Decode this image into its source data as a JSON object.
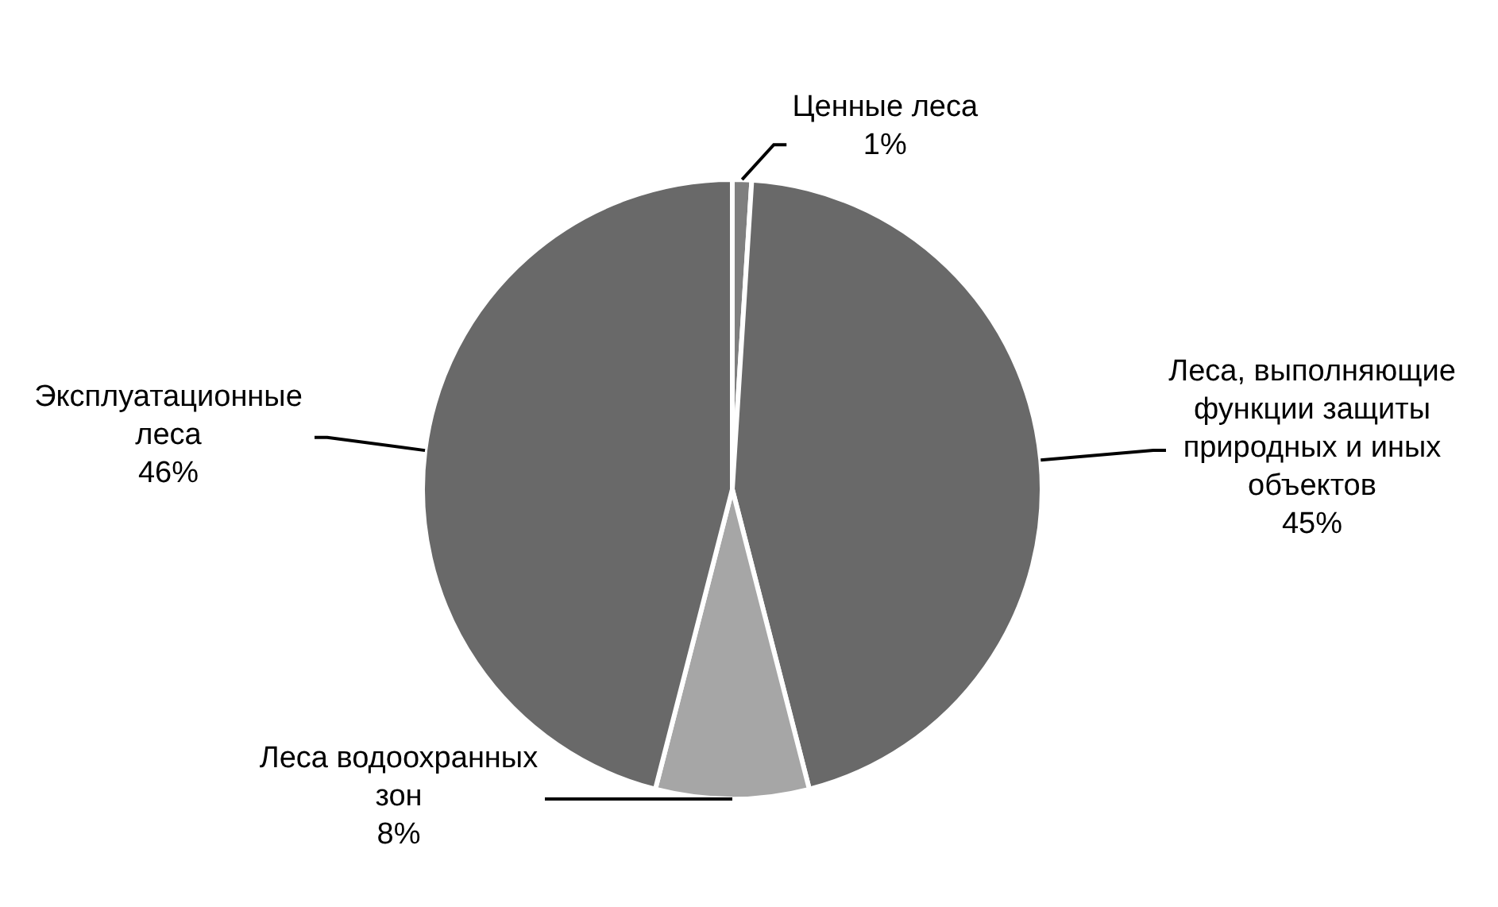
{
  "chart_data": {
    "type": "pie",
    "categories": [
      "Ценные леса",
      "Леса, выполняющие функции защиты природных и иных объектов",
      "Леса водоохранных зон",
      "Эксплуатационные леса"
    ],
    "values": [
      1,
      45,
      8,
      46
    ],
    "value_labels": [
      "1%",
      "45%",
      "8%",
      "46%"
    ],
    "colors": [
      "#7f7f7f",
      "#696969",
      "#a6a6a6",
      "#696969"
    ],
    "legend": false
  }
}
